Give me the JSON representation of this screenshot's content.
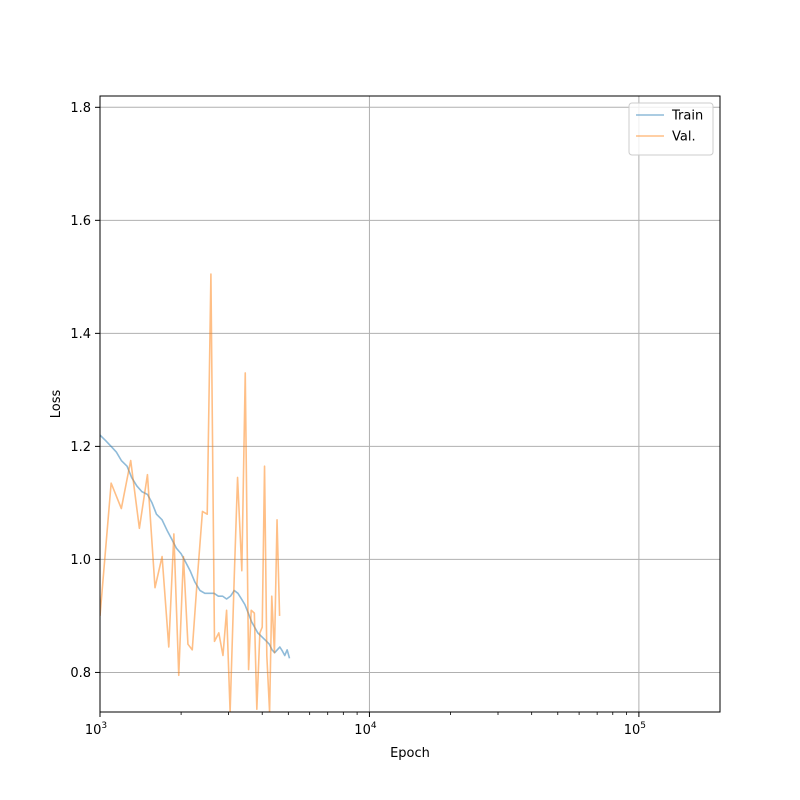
{
  "chart_data": {
    "type": "line",
    "title": "",
    "xlabel": "Epoch",
    "ylabel": "Loss",
    "xscale": "log",
    "xlim": [
      1000,
      200000
    ],
    "ylim": [
      0.73,
      1.82
    ],
    "grid": true,
    "legend_position": "top-right",
    "x_major_ticks": [
      {
        "value": 1000,
        "base": "10",
        "exp": "3"
      },
      {
        "value": 10000,
        "base": "10",
        "exp": "4"
      },
      {
        "value": 100000,
        "base": "10",
        "exp": "5"
      }
    ],
    "y_ticks": [
      {
        "value": 0.8,
        "label": "0.8"
      },
      {
        "value": 1.0,
        "label": "1.0"
      },
      {
        "value": 1.2,
        "label": "1.2"
      },
      {
        "value": 1.4,
        "label": "1.4"
      },
      {
        "value": 1.6,
        "label": "1.6"
      },
      {
        "value": 1.8,
        "label": "1.8"
      }
    ],
    "series": [
      {
        "name": "Train",
        "color": "#1f77b4",
        "opacity": 0.5,
        "points": [
          [
            1000,
            1.22
          ],
          [
            1050,
            1.21
          ],
          [
            1100,
            1.2
          ],
          [
            1150,
            1.19
          ],
          [
            1200,
            1.175
          ],
          [
            1260,
            1.165
          ],
          [
            1310,
            1.145
          ],
          [
            1370,
            1.13
          ],
          [
            1430,
            1.12
          ],
          [
            1500,
            1.115
          ],
          [
            1560,
            1.1
          ],
          [
            1620,
            1.08
          ],
          [
            1700,
            1.07
          ],
          [
            1780,
            1.05
          ],
          [
            1850,
            1.035
          ],
          [
            1920,
            1.02
          ],
          [
            2000,
            1.01
          ],
          [
            2080,
            0.995
          ],
          [
            2160,
            0.98
          ],
          [
            2250,
            0.96
          ],
          [
            2350,
            0.945
          ],
          [
            2450,
            0.94
          ],
          [
            2550,
            0.94
          ],
          [
            2650,
            0.94
          ],
          [
            2750,
            0.935
          ],
          [
            2850,
            0.935
          ],
          [
            2950,
            0.93
          ],
          [
            3050,
            0.935
          ],
          [
            3150,
            0.945
          ],
          [
            3250,
            0.94
          ],
          [
            3350,
            0.93
          ],
          [
            3450,
            0.92
          ],
          [
            3550,
            0.905
          ],
          [
            3650,
            0.89
          ],
          [
            3750,
            0.88
          ],
          [
            3850,
            0.87
          ],
          [
            3950,
            0.865
          ],
          [
            4050,
            0.86
          ],
          [
            4150,
            0.855
          ],
          [
            4250,
            0.85
          ],
          [
            4350,
            0.84
          ],
          [
            4450,
            0.835
          ],
          [
            4550,
            0.84
          ],
          [
            4650,
            0.845
          ],
          [
            4750,
            0.838
          ],
          [
            4850,
            0.83
          ],
          [
            4950,
            0.84
          ],
          [
            5050,
            0.825
          ]
        ]
      },
      {
        "name": "Val.",
        "color": "#ff7f0e",
        "opacity": 0.5,
        "points": [
          [
            1000,
            0.9
          ],
          [
            1100,
            1.135
          ],
          [
            1200,
            1.09
          ],
          [
            1300,
            1.175
          ],
          [
            1400,
            1.055
          ],
          [
            1500,
            1.15
          ],
          [
            1600,
            0.95
          ],
          [
            1700,
            1.005
          ],
          [
            1800,
            0.845
          ],
          [
            1880,
            1.045
          ],
          [
            1960,
            0.795
          ],
          [
            2040,
            1.005
          ],
          [
            2120,
            0.85
          ],
          [
            2200,
            0.84
          ],
          [
            2300,
            0.97
          ],
          [
            2400,
            1.085
          ],
          [
            2500,
            1.08
          ],
          [
            2580,
            1.505
          ],
          [
            2660,
            0.855
          ],
          [
            2760,
            0.87
          ],
          [
            2860,
            0.83
          ],
          [
            2950,
            0.91
          ],
          [
            3040,
            0.73
          ],
          [
            3150,
            0.97
          ],
          [
            3240,
            1.145
          ],
          [
            3360,
            0.98
          ],
          [
            3460,
            1.33
          ],
          [
            3560,
            0.805
          ],
          [
            3640,
            0.91
          ],
          [
            3740,
            0.905
          ],
          [
            3820,
            0.735
          ],
          [
            3920,
            0.87
          ],
          [
            4000,
            0.88
          ],
          [
            4080,
            1.165
          ],
          [
            4160,
            0.83
          ],
          [
            4260,
            0.73
          ],
          [
            4340,
            0.935
          ],
          [
            4440,
            0.835
          ],
          [
            4540,
            1.07
          ],
          [
            4640,
            0.9
          ]
        ]
      }
    ]
  }
}
